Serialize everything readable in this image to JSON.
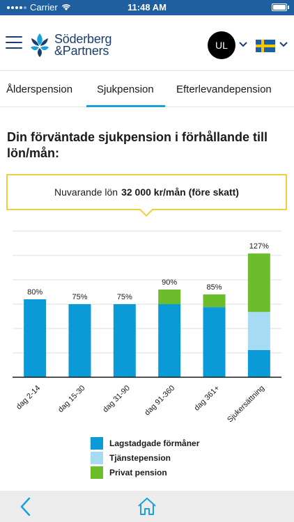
{
  "status_bar": {
    "carrier": "Carrier",
    "time": "11:48 AM"
  },
  "header": {
    "logo_line1": "Söderberg",
    "logo_line2": "&Partners",
    "avatar_initials": "UL",
    "menu_icon": "hamburger-menu-icon",
    "language_flag": "sweden-flag-icon"
  },
  "tabs": [
    {
      "label": "Ålderspension",
      "active": false
    },
    {
      "label": "Sjukpension",
      "active": true
    },
    {
      "label": "Efterlevandepension",
      "active": false
    }
  ],
  "main": {
    "heading": "Din förväntade sjukpension i förhållande till lön/mån:",
    "salary_label": "Nuvarande lön",
    "salary_value": "32 000 kr/mån (före skatt)"
  },
  "colors": {
    "brand_blue": "#1a3f6f",
    "accent_blue": "#1aa0dc",
    "highlight_yellow": "#f2cf3a",
    "lagstadgade": "#0a9ad8",
    "tjanstepension": "#a6dcf3",
    "privat": "#6cbd2b"
  },
  "chart_data": {
    "type": "bar",
    "stacked": true,
    "categories": [
      "dag 2-14",
      "dag 15-30",
      "dag 31-90",
      "dag 91-360",
      "dag 361+",
      "Sjukersättning"
    ],
    "totals_labels": [
      "80%",
      "75%",
      "75%",
      "90%",
      "85%",
      "127%"
    ],
    "series": [
      {
        "name": "Lagstadgade förmåner",
        "values": [
          80,
          75,
          75,
          75,
          72,
          28
        ]
      },
      {
        "name": "Tjänstepension",
        "values": [
          0,
          0,
          0,
          0,
          0,
          39
        ]
      },
      {
        "name": "Privat pension",
        "values": [
          0,
          0,
          0,
          15,
          13,
          60
        ]
      }
    ],
    "ylim": [
      0,
      150
    ],
    "grid": true,
    "legend_position": "bottom"
  },
  "bottom_bar": {
    "back_icon": "chevron-left-icon",
    "home_icon": "home-icon"
  }
}
